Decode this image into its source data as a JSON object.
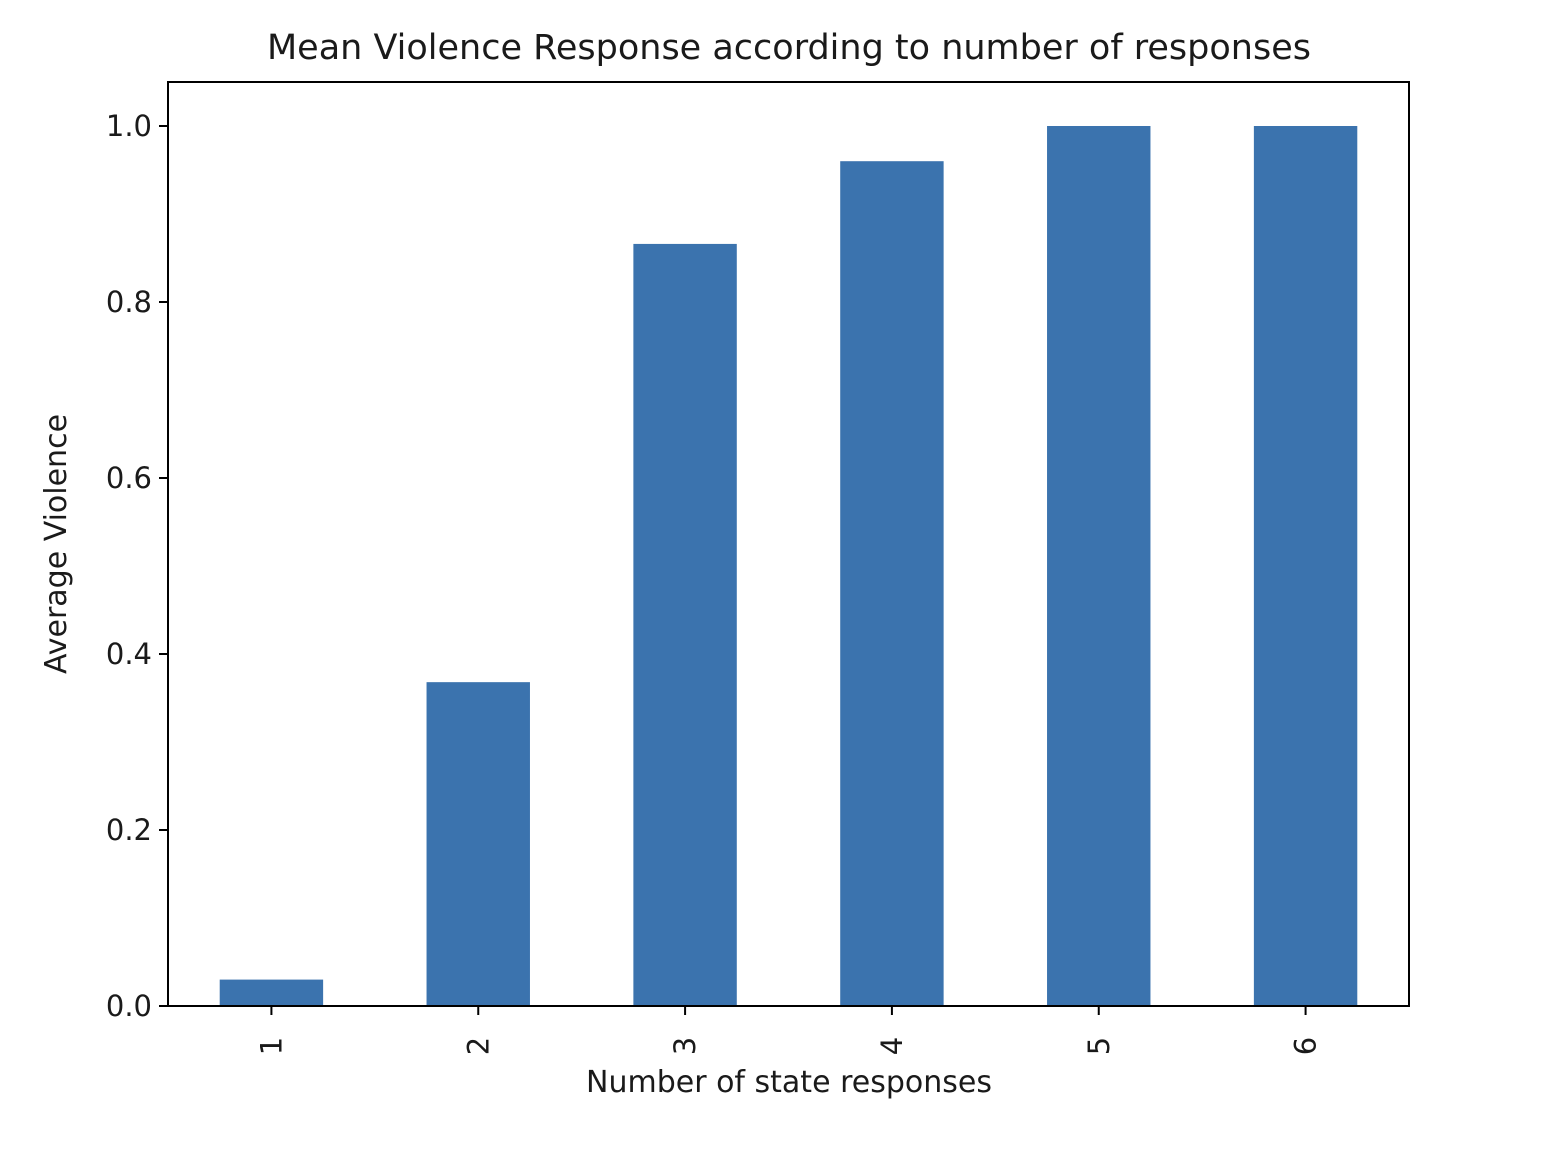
{
  "chart_data": {
    "type": "bar",
    "title": "Mean Violence Response according to number of responses",
    "xlabel": "Number of state responses",
    "ylabel": "Average Violence",
    "categories": [
      "1",
      "2",
      "3",
      "4",
      "5",
      "6"
    ],
    "values": [
      0.03,
      0.368,
      0.866,
      0.96,
      1.0,
      1.0
    ],
    "ylim": [
      0,
      1.05
    ],
    "yticks": [
      0.0,
      0.2,
      0.4,
      0.6,
      0.8,
      1.0
    ],
    "ytick_labels": [
      "0.0",
      "0.2",
      "0.4",
      "0.6",
      "0.8",
      "1.0"
    ],
    "xtick_rotation": "vertical",
    "grid": false,
    "legend": "none",
    "bar_color": "#3b73ae"
  }
}
